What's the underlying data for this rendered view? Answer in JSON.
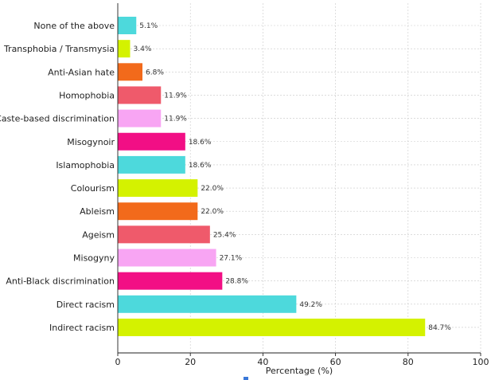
{
  "chart_data": {
    "type": "bar",
    "orientation": "horizontal",
    "title": "",
    "xlabel": "Percentage (%)",
    "ylabel": "",
    "xlim": [
      0,
      100
    ],
    "xticks": [
      0,
      20,
      40,
      60,
      80,
      100
    ],
    "grid": true,
    "categories": [
      "None of the above",
      "Transphobia / Transmysia",
      "Anti-Asian hate",
      "Homophobia",
      "Caste-based discrimination",
      "Misogynoir",
      "Islamophobia",
      "Colourism",
      "Ableism",
      "Ageism",
      "Misogyny",
      "Anti-Black discrimination",
      "Direct racism",
      "Indirect racism"
    ],
    "values": [
      5.1,
      3.4,
      6.8,
      11.9,
      11.9,
      18.6,
      18.6,
      22.0,
      22.0,
      25.4,
      27.1,
      28.8,
      49.2,
      84.7
    ],
    "value_labels": [
      "5.1%",
      "3.4%",
      "6.8%",
      "11.9%",
      "11.9%",
      "18.6%",
      "18.6%",
      "22.0%",
      "22.0%",
      "25.4%",
      "27.1%",
      "28.8%",
      "49.2%",
      "84.7%"
    ],
    "colors": [
      "#4dd9dc",
      "#d4f200",
      "#f26a1b",
      "#ef5a6b",
      "#f8a5f3",
      "#f20f85",
      "#4dd9dc",
      "#d4f200",
      "#f26a1b",
      "#ef5a6b",
      "#f8a5f3",
      "#f20f85",
      "#4dd9dc",
      "#d4f200"
    ],
    "marker_color": "#3a78d8"
  }
}
